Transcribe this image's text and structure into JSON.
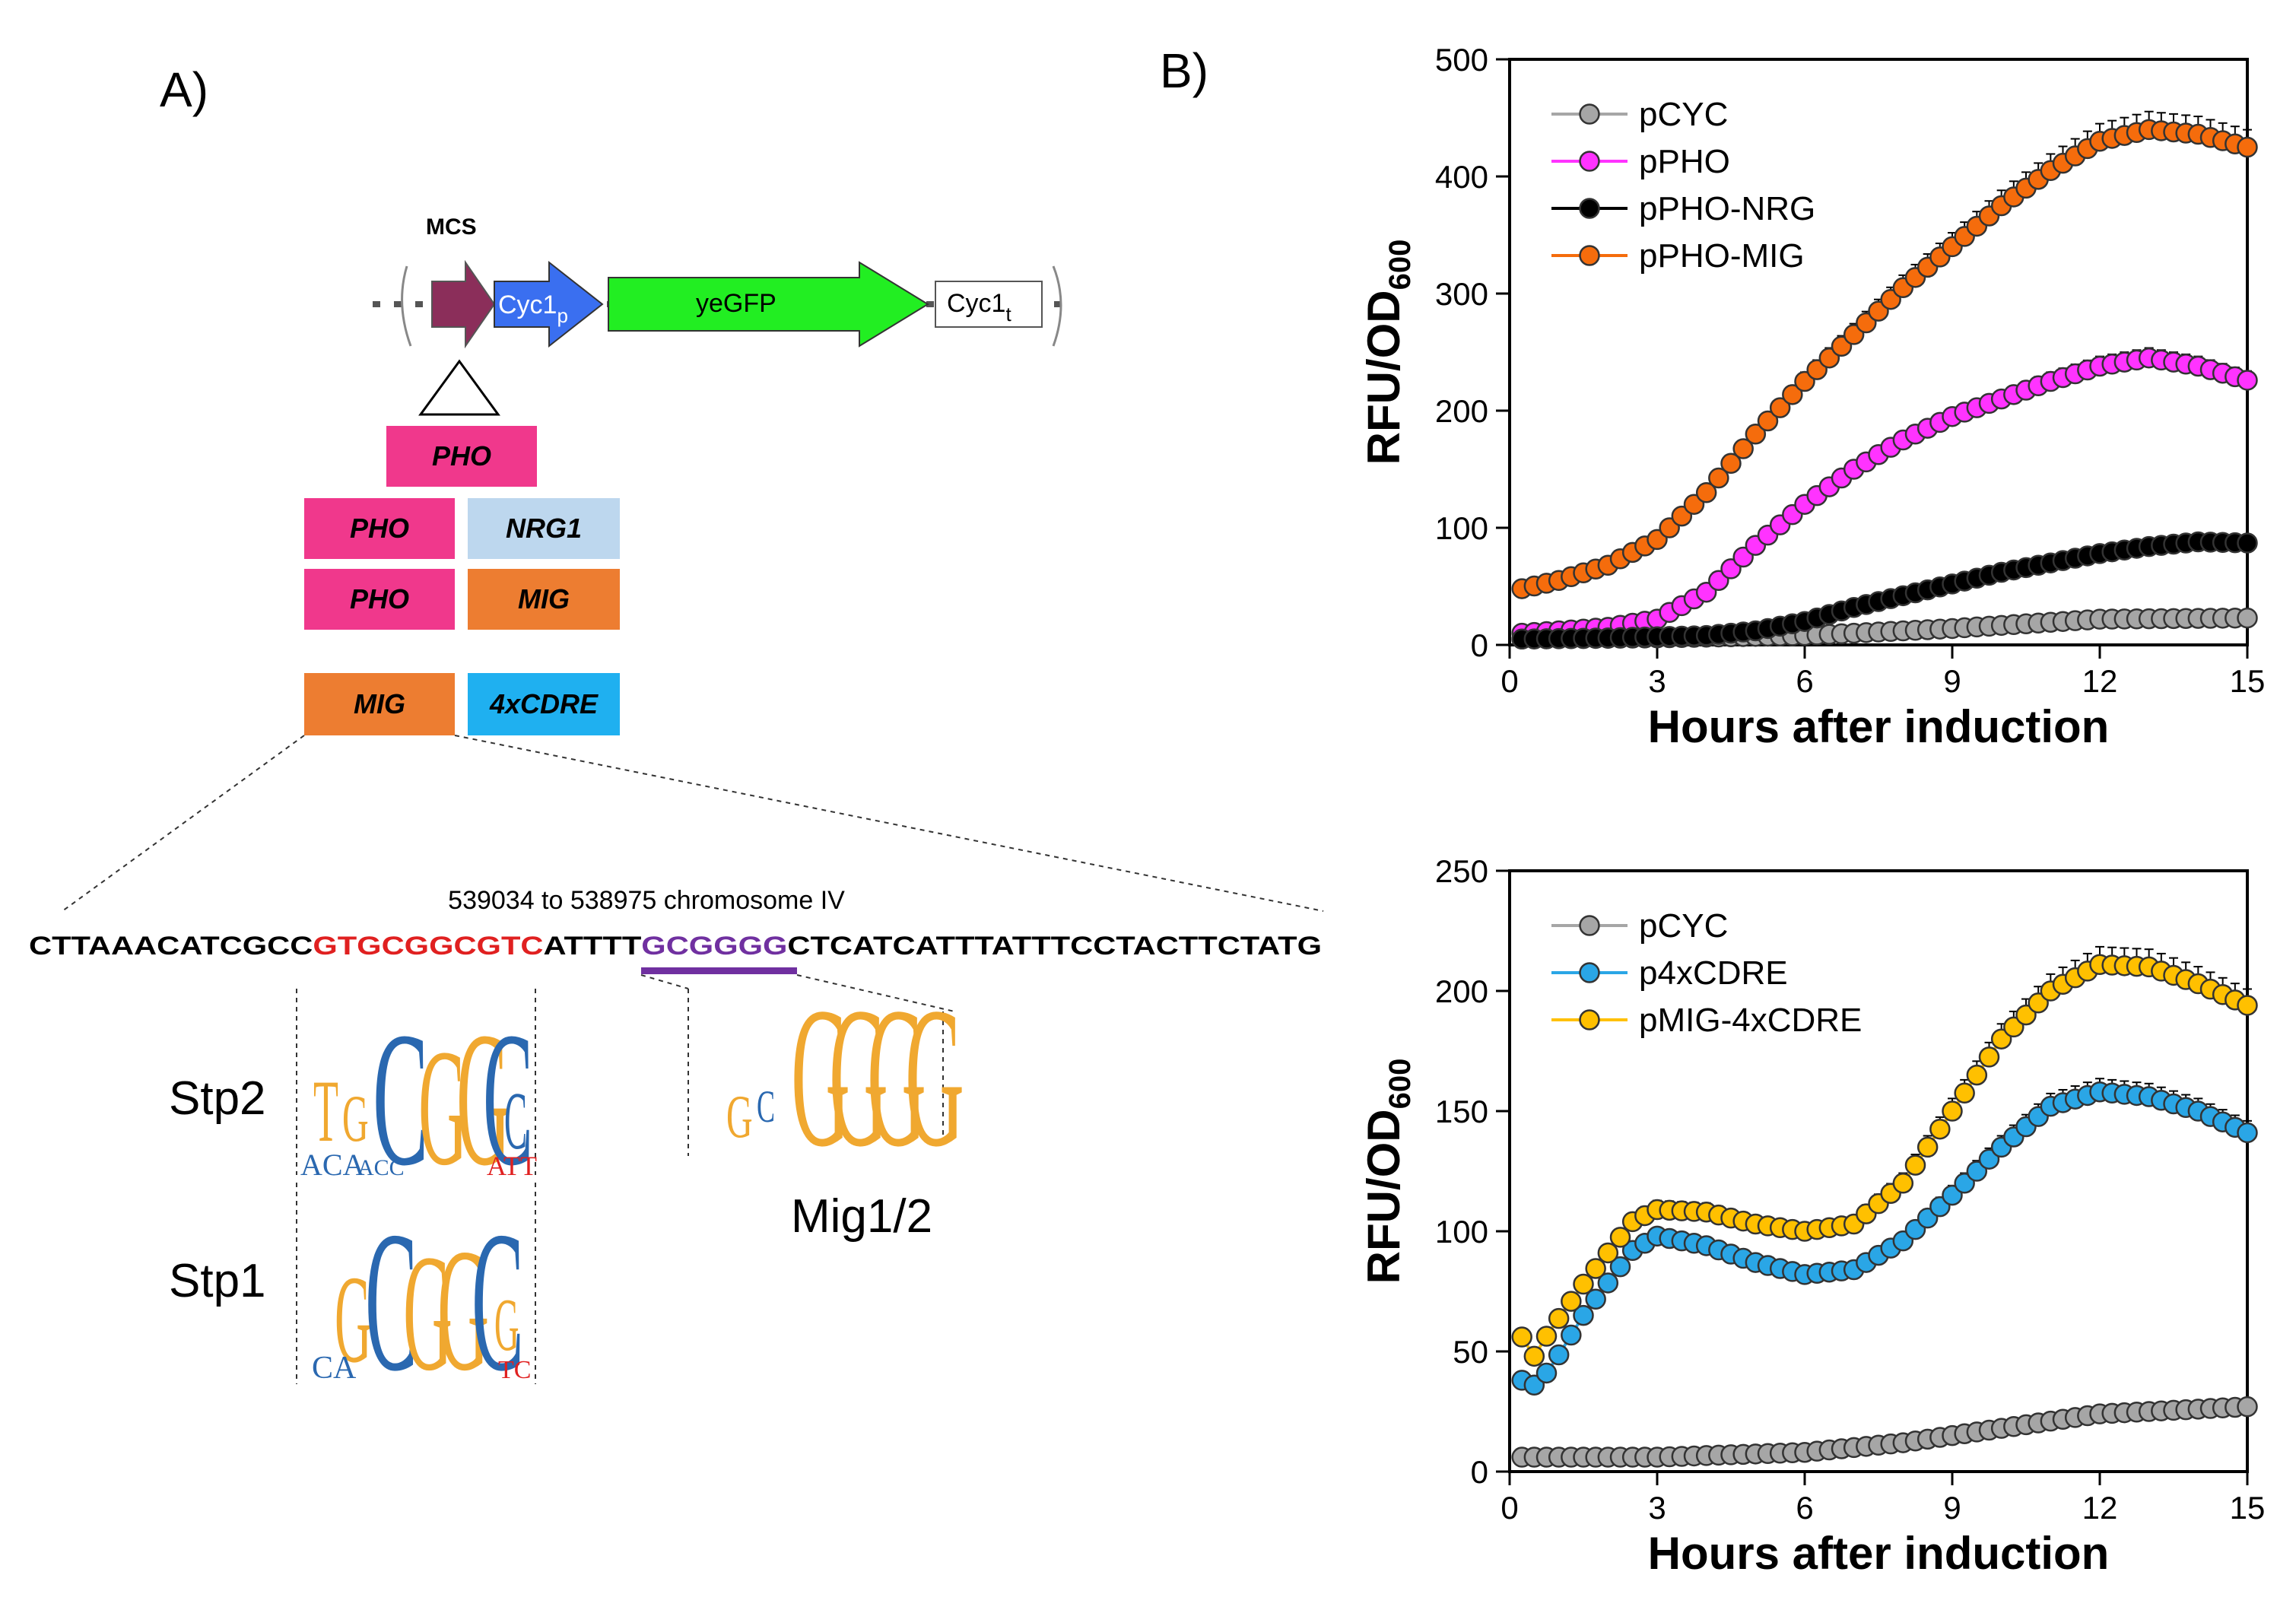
{
  "panel_a": {
    "label": "A)",
    "construct": {
      "mcs": "MCS",
      "promoter": "Cyc1",
      "promoter_sub": "p",
      "gene": "yeGFP",
      "terminator": "Cyc1",
      "terminator_sub": "t"
    },
    "boxes": {
      "pho_top": "PHO",
      "pho_nrg": "PHO",
      "nrg1": "NRG1",
      "pho_mig": "PHO",
      "mig": "MIG",
      "mig2": "MIG",
      "cdre": "4xCDRE"
    },
    "sequence": {
      "coords": "539034 to 538975 chromosome IV",
      "part1": "CTTAAACATCGCC",
      "part2": "GTGCGGCGTC",
      "part3": "ATTTT",
      "part4": "GCGGGG",
      "part5": "CTCATCATTTATTTCCTACTTCTATG"
    },
    "motifs": {
      "stp2": "Stp2",
      "stp1": "Stp1",
      "mig12": "Mig1/2"
    },
    "colors": {
      "pho": "#f0388c",
      "nrg1": "#bdd7ee",
      "mig": "#ed7d31",
      "cdre": "#1fb0f0",
      "mcs_arrow": "#8b2e5a",
      "cyc1_arrow": "#3a6ff0",
      "gfp_arrow": "#22ee22",
      "seq_red": "#e02020",
      "seq_purple": "#7030a0"
    }
  },
  "panel_b": {
    "label": "B)"
  },
  "chart_data": [
    {
      "type": "line",
      "title": "",
      "xlabel": "Hours after induction",
      "ylabel": "RFU/OD600",
      "xlim": [
        0,
        15
      ],
      "ylim": [
        0,
        500
      ],
      "xticks": [
        0,
        3,
        6,
        9,
        12,
        15
      ],
      "yticks": [
        0,
        100,
        200,
        300,
        400,
        500
      ],
      "legend_position": "top-left",
      "series": [
        {
          "name": "pCYC",
          "color": "#a6a6a6",
          "x": [
            0.25,
            3,
            6,
            9,
            12,
            15
          ],
          "y": [
            5,
            6,
            8,
            14,
            22,
            23
          ]
        },
        {
          "name": "pPHO",
          "color": "#ff33ff",
          "x": [
            0.25,
            1,
            2,
            3,
            4,
            5,
            6,
            7,
            8,
            9,
            10,
            11,
            12,
            13,
            14,
            15
          ],
          "y": [
            10,
            12,
            15,
            22,
            45,
            85,
            120,
            150,
            175,
            195,
            210,
            225,
            238,
            245,
            238,
            226
          ]
        },
        {
          "name": "pPHO-NRG",
          "color": "#000000",
          "x": [
            0.25,
            2,
            4,
            5,
            6,
            7,
            8,
            9,
            10,
            11,
            12,
            13,
            14,
            15
          ],
          "y": [
            5,
            6,
            8,
            12,
            20,
            32,
            42,
            52,
            62,
            70,
            78,
            84,
            88,
            87
          ]
        },
        {
          "name": "pPHO-MIG",
          "color": "#f56c0c",
          "x": [
            0.25,
            1,
            2,
            3,
            4,
            5,
            6,
            7,
            8,
            9,
            10,
            11,
            12,
            13,
            14,
            15
          ],
          "y": [
            48,
            55,
            68,
            90,
            130,
            180,
            225,
            265,
            305,
            340,
            375,
            405,
            430,
            440,
            436,
            425
          ]
        }
      ]
    },
    {
      "type": "line",
      "title": "",
      "xlabel": "Hours after induction",
      "ylabel": "RFU/OD600",
      "xlim": [
        0,
        15
      ],
      "ylim": [
        0,
        250
      ],
      "xticks": [
        0,
        3,
        6,
        9,
        12,
        15
      ],
      "yticks": [
        0,
        50,
        100,
        150,
        200,
        250
      ],
      "legend_position": "top-left",
      "series": [
        {
          "name": "pCYC",
          "color": "#a6a6a6",
          "x": [
            0.25,
            3,
            6,
            8,
            10,
            12,
            15
          ],
          "y": [
            6,
            6,
            8,
            12,
            18,
            24,
            27
          ]
        },
        {
          "name": "p4xCDRE",
          "color": "#2aa6e6",
          "x": [
            0.25,
            0.5,
            0.8,
            1.5,
            2.5,
            3,
            4,
            5,
            6,
            7,
            8,
            9,
            10,
            11,
            12,
            13,
            14,
            15
          ],
          "y": [
            38,
            36,
            42,
            65,
            92,
            98,
            94,
            87,
            82,
            84,
            96,
            115,
            135,
            152,
            158,
            156,
            150,
            141
          ]
        },
        {
          "name": "pMIG-4xCDRE",
          "color": "#ffc000",
          "x": [
            0.25,
            0.5,
            0.8,
            1.5,
            2.5,
            3,
            4,
            5,
            6,
            7,
            8,
            9,
            10,
            11,
            12,
            13,
            14,
            15
          ],
          "y": [
            56,
            48,
            58,
            78,
            104,
            109,
            108,
            103,
            100,
            103,
            120,
            150,
            180,
            200,
            211,
            210,
            203,
            194
          ]
        }
      ]
    }
  ]
}
